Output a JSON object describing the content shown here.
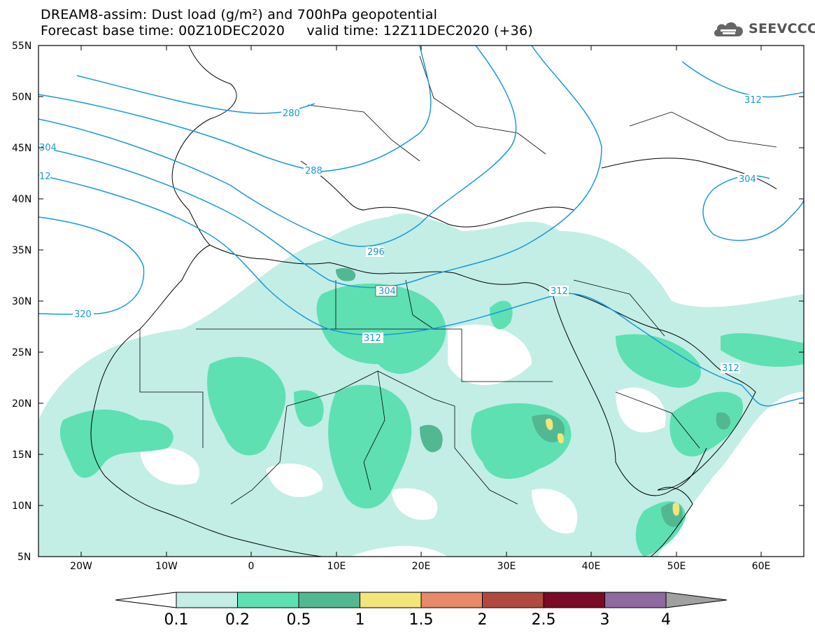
{
  "header": {
    "title_line1": "DREAM8-assim: Dust load (g/m²) and 700hPa geopotential",
    "title_line2": "Forecast base time: 00Z10DEC2020     valid time: 12Z11DEC2020 (+36)",
    "logo_text": "SEEVCCC"
  },
  "map": {
    "lat_labels": [
      "55N",
      "50N",
      "45N",
      "40N",
      "35N",
      "30N",
      "25N",
      "20N",
      "15N",
      "10N",
      "5N"
    ],
    "lon_labels": [
      "20W",
      "10W",
      "0",
      "10E",
      "20E",
      "30E",
      "40E",
      "50E",
      "60E"
    ],
    "contour_labels": [
      "280",
      "288",
      "296",
      "304",
      "312",
      "320",
      "304",
      "12",
      "312",
      "304",
      "312",
      "312"
    ]
  },
  "colorbar": {
    "ticks": [
      "0.1",
      "0.2",
      "0.5",
      "1",
      "1.5",
      "2",
      "2.5",
      "3",
      "4"
    ],
    "colors": [
      "#c2eee6",
      "#5ee0b3",
      "#52b892",
      "#f2e67a",
      "#e8896a",
      "#b04a3e",
      "#7a0a26",
      "#8e6aa0"
    ],
    "under_color": "#ffffff",
    "over_color": "#a0a0a0"
  },
  "colors": {
    "contour": "#1a9ad6",
    "dust_light": "#c2eee6",
    "dust_mid": "#5ee0b3",
    "dust_dark": "#52b892",
    "dust_yellow": "#f2e67a"
  }
}
